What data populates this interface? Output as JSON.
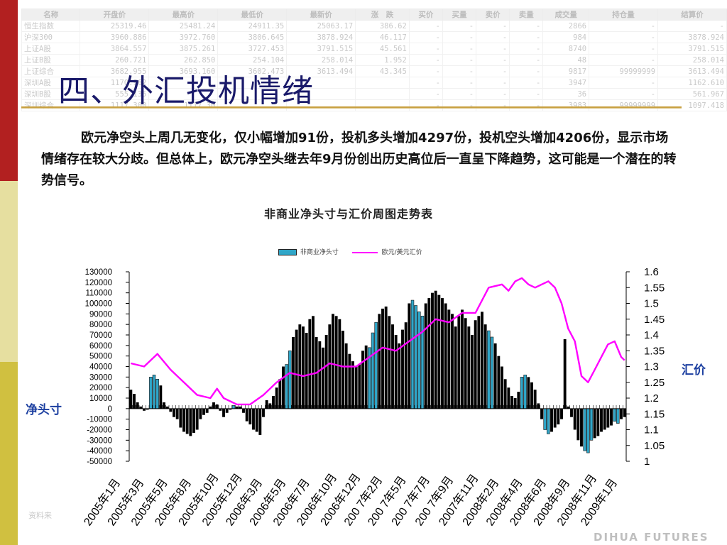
{
  "background_table": {
    "headers": [
      "名称",
      "开盘价",
      "最高价",
      "最低价",
      "最新价",
      "涨　跌",
      "买价",
      "买量",
      "卖价",
      "卖量",
      "成交量",
      "持仓量",
      "结算价"
    ],
    "rows": [
      [
        "恒生指数",
        "25319.46",
        "25481.24",
        "24911.35",
        "25063.17",
        "386.62",
        "-",
        "-",
        "-",
        "-",
        "2866",
        "-",
        "-"
      ],
      [
        "沪深300",
        "3960.886",
        "3972.760",
        "3806.645",
        "3878.924",
        "46.117",
        "-",
        "-",
        "-",
        "-",
        "984",
        "-",
        "3878.924"
      ],
      [
        "上证A股",
        "3864.557",
        "3875.261",
        "3727.453",
        "3791.515",
        "45.561",
        "-",
        "-",
        "-",
        "-",
        "8740",
        "-",
        "3791.515"
      ],
      [
        "上证B股",
        "260.721",
        "262.850",
        "254.104",
        "258.014",
        "1.952",
        "-",
        "-",
        "-",
        "-",
        "48",
        "-",
        "258.014"
      ],
      [
        "上证综合",
        "3682.955",
        "3693.160",
        "3602.473",
        "3613.494",
        "43.345",
        "-",
        "-",
        "-",
        "-",
        "9817",
        "99999999",
        "3613.494"
      ],
      [
        "深圳A股",
        "1170.962",
        "",
        "",
        "",
        "",
        "-",
        "-",
        "-",
        "-",
        "3947",
        "-",
        "1162.610"
      ],
      [
        "深圳B股",
        "555.135",
        "",
        "",
        "",
        "",
        "-",
        "-",
        "-",
        "-",
        "36",
        "-",
        "561.967"
      ],
      [
        "深圳综合",
        "1117.300",
        "1117.30",
        "",
        "",
        "",
        "-",
        "-",
        "-",
        "-",
        "3983",
        "99999999",
        "1097.418"
      ]
    ]
  },
  "slide": {
    "title": "四、外汇投机情绪",
    "body": "欧元净空头上周几无变化，仅小幅增加91份，投机多头增加4297份，投机空头增加4206份，显示市场情绪存在较大分歧。但总体上，欧元净空头继去年9月份创出历史高位后一直呈下降趋势，这可能是一个潜在的转势信号。",
    "chart_caption": "非商业净头寸与汇价周图走势表",
    "legend_bar": "非商业净头寸",
    "legend_line": "欧元/美元汇价",
    "left_axis_label": "净头寸",
    "right_axis_label": "汇价",
    "source_note": "资料来",
    "logo": "DIHUA FUTURES"
  },
  "colors": {
    "bar_fill": "#000000",
    "bar_highlight": "#30a6c8",
    "line": "#ff00ff",
    "stripe_red": "#b22020",
    "stripe_cream": "#e6dfa0",
    "stripe_olive": "#d0c040",
    "title": "#1a1a6a",
    "axis_label": "#1c3fa0"
  },
  "chart_data": {
    "type": "bar+line",
    "title": "非商业净头寸与汇价周图走势表",
    "ylabel_left": "净头寸",
    "ylabel_right": "汇价",
    "ylim_left": [
      -50000,
      130000
    ],
    "ylim_right": [
      1,
      1.6
    ],
    "yticks_left": [
      "130000",
      "120000",
      "110000",
      "100000",
      "90000",
      "80000",
      "70000",
      "60000",
      "50000",
      "40000",
      "30000",
      "20000",
      "10000",
      "0",
      "-10000",
      "-20000",
      "-30000",
      "-40000",
      "-50000"
    ],
    "yticks_right": [
      "1.6",
      "1.55",
      "1.5",
      "1.45",
      "1.4",
      "1.35",
      "1.3",
      "1.25",
      "1.2",
      "1.15",
      "1.1",
      "1.05",
      "1"
    ],
    "x_labels": [
      "2005年1月",
      "2005年3月",
      "2005年5月",
      "2005年8月",
      "2005年10月",
      "2005年12月",
      "2006年3月",
      "2006年5月",
      "2006年7月",
      "2006年10月",
      "2006年12月",
      "2007年2月",
      "2007年5月",
      "2007年7月",
      "2007年9月",
      "2007年11月",
      "2008年2月",
      "2008年4月",
      "2008年6月",
      "2008年9月",
      "2008年11月",
      "2009年1月"
    ],
    "x_labels_shown": [
      "2005年1月",
      "2005年3月",
      "2005年5月",
      "2005年8月",
      "2005年10月",
      "2005年12月",
      "2006年3月",
      "2006年5月",
      "2006年7月",
      "2006年10月",
      "2006年12月",
      "200 7年2月",
      "200 7年5月",
      "200 7年7月",
      "200 7年9月",
      "2007年11月",
      "2008年2月",
      "2008年4月",
      "2008年6月",
      "2008年9月",
      "2008年11月",
      "2009年1月"
    ],
    "legend": [
      "非商业净头寸",
      "欧元/美元汇价"
    ],
    "legend_position": "top",
    "series": [
      {
        "name": "非商业净头寸",
        "kind": "bar",
        "values": [
          18000,
          14000,
          6000,
          2000,
          -2000,
          -1000,
          30000,
          32000,
          28000,
          22000,
          6000,
          2000,
          -3000,
          -8000,
          -10000,
          -18000,
          -22000,
          -24000,
          -26000,
          -23000,
          -20000,
          -10000,
          -6000,
          -4000,
          2000,
          6000,
          4000,
          -2000,
          -8000,
          -4000,
          -1000,
          3000,
          2000,
          2000,
          -4000,
          -12000,
          -15000,
          -20000,
          -22000,
          -25000,
          -8000,
          8000,
          5000,
          12000,
          20000,
          28000,
          40000,
          42000,
          55000,
          68000,
          75000,
          80000,
          78000,
          72000,
          85000,
          88000,
          68000,
          64000,
          58000,
          70000,
          80000,
          90000,
          88000,
          85000,
          74000,
          62000,
          52000,
          45000,
          40000,
          42000,
          55000,
          60000,
          58000,
          72000,
          82000,
          90000,
          95000,
          97000,
          88000,
          80000,
          70000,
          62000,
          75000,
          82000,
          100000,
          103000,
          98000,
          92000,
          88000,
          100000,
          105000,
          110000,
          112000,
          108000,
          105000,
          100000,
          94000,
          90000,
          78000,
          88000,
          94000,
          86000,
          78000,
          70000,
          84000,
          88000,
          92000,
          80000,
          74000,
          68000,
          62000,
          50000,
          40000,
          28000,
          20000,
          12000,
          10000,
          16000,
          30000,
          32000,
          30000,
          25000,
          18000,
          5000,
          -10000,
          -20000,
          -24000,
          -22000,
          -18000,
          -15000,
          -10000,
          66000,
          2000,
          -8000,
          -20000,
          -30000,
          -36000,
          -40000,
          -42000,
          -30000,
          -28000,
          -26000,
          -22000,
          -20000,
          -18000,
          -16000,
          -12000,
          -14000,
          -10000,
          -8000
        ],
        "highlight_indices": [
          6,
          7,
          8,
          31,
          47,
          48,
          72,
          73,
          74,
          85,
          86,
          87,
          88,
          108,
          109,
          118,
          119,
          125,
          126,
          137,
          138,
          139,
          146,
          147
        ]
      },
      {
        "name": "欧元/美元汇价",
        "kind": "line",
        "axis": "right",
        "x": [
          0,
          4,
          8,
          12,
          16,
          20,
          24,
          26,
          28,
          32,
          36,
          40,
          44,
          48,
          52,
          56,
          60,
          64,
          68,
          72,
          76,
          80,
          84,
          88,
          92,
          96,
          100,
          104,
          108,
          112,
          114,
          116,
          118,
          120,
          122,
          124,
          126,
          128,
          130,
          132,
          134,
          136,
          138,
          140,
          142,
          144,
          146,
          148,
          149
        ],
        "values": [
          1.31,
          1.3,
          1.34,
          1.29,
          1.25,
          1.21,
          1.2,
          1.23,
          1.2,
          1.18,
          1.18,
          1.21,
          1.25,
          1.28,
          1.27,
          1.28,
          1.31,
          1.3,
          1.3,
          1.33,
          1.36,
          1.35,
          1.38,
          1.41,
          1.45,
          1.44,
          1.47,
          1.47,
          1.55,
          1.56,
          1.54,
          1.57,
          1.58,
          1.56,
          1.55,
          1.56,
          1.57,
          1.55,
          1.5,
          1.42,
          1.38,
          1.27,
          1.25,
          1.29,
          1.33,
          1.37,
          1.38,
          1.33,
          1.32
        ]
      }
    ]
  }
}
